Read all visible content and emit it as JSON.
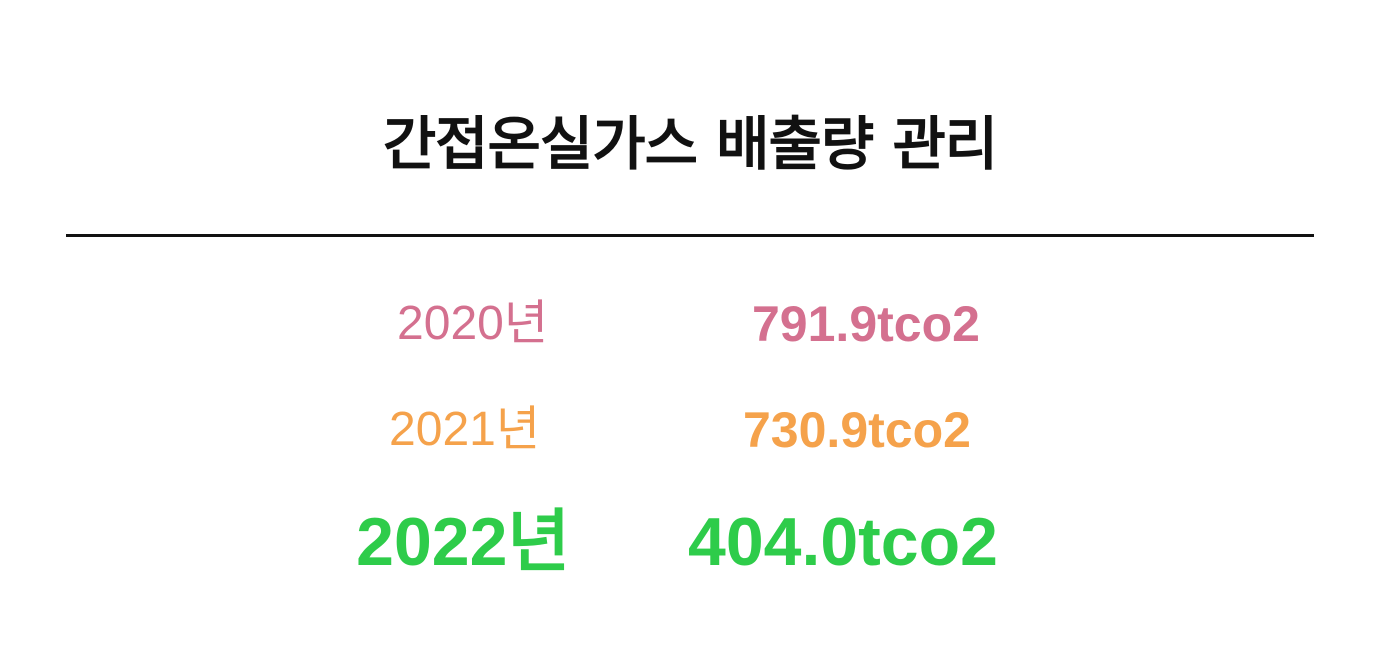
{
  "title": "간접온실가스 배출량 관리",
  "rows": [
    {
      "year": "2020년",
      "value": "791.9tco2",
      "color": "#d4708f"
    },
    {
      "year": "2021년",
      "value": "730.9tco2",
      "color": "#f5a24b"
    },
    {
      "year": "2022년",
      "value": "404.0tco2",
      "color": "#2ecc4a"
    }
  ]
}
